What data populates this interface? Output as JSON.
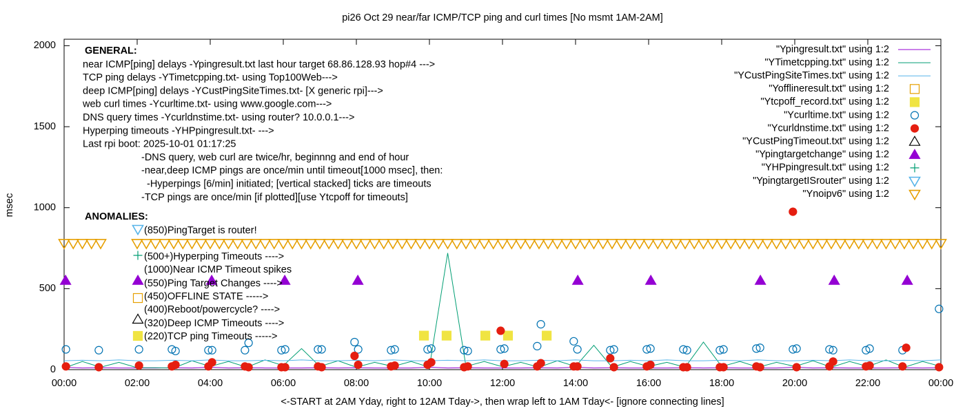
{
  "chart_data": {
    "type": "scatter",
    "title": "pi26 Oct 29  near/far ICMP/TCP ping and curl times [No msmt 1AM-2AM]",
    "x_label": "<-START at 2AM Yday, right to 12AM Tday->, then wrap left to 1AM Tday<- [ignore connecting lines]",
    "y_label": "msec",
    "xlim": [
      0,
      24
    ],
    "ylim": [
      0,
      2040
    ],
    "xticks": [
      {
        "value": 0,
        "label": "00:00"
      },
      {
        "value": 2,
        "label": "02:00"
      },
      {
        "value": 4,
        "label": "04:00"
      },
      {
        "value": 6,
        "label": "06:00"
      },
      {
        "value": 8,
        "label": "08:00"
      },
      {
        "value": 10,
        "label": "10:00"
      },
      {
        "value": 12,
        "label": "12:00"
      },
      {
        "value": 14,
        "label": "14:00"
      },
      {
        "value": 16,
        "label": "16:00"
      },
      {
        "value": 18,
        "label": "18:00"
      },
      {
        "value": 20,
        "label": "20:00"
      },
      {
        "value": 22,
        "label": "22:00"
      },
      {
        "value": 24,
        "label": "00:00"
      }
    ],
    "yticks": [
      0,
      500,
      1000,
      1500,
      2000
    ],
    "legend": "top-right",
    "annotations": {
      "general_heading": "GENERAL:",
      "general": [
        "near ICMP[ping] delays -Ypingresult.txt last hour target 68.86.128.93 hop#4 --->",
        "TCP ping delays -YTimetcpping.txt- using Top100Web--->",
        "deep ICMP[ping] delays -YCustPingSiteTimes.txt- [X generic rpi]--->",
        "web curl times -Ycurltime.txt- using www.google.com--->",
        "DNS query times -Ycurldnstime.txt- using router? 10.0.0.1--->",
        "Hyperping timeouts -YHPpingresult.txt- --->",
        "Last rpi boot: 2025-10-01 01:17:25",
        "-DNS query, web curl are twice/hr, beginnng and end of hour",
        "-near,deep ICMP pings are once/min until timeout[1000 msec], then:",
        "-Hyperpings [6/min] initiated; [vertical stacked] ticks are timeouts",
        "-TCP pings are once/min [if plotted][use Ytcpoff for timeouts]"
      ],
      "anomalies_heading": "ANOMALIES:",
      "anomalies": [
        "(850)PingTarget is router!",
        "(500+)Hyperping Timeouts ---->",
        "(1000)Near ICMP Timeout spikes",
        "(550)Ping Target Changes ---->",
        "(450)OFFLINE STATE ----->",
        "(400)Reboot/powercycle? ---->",
        "(320)Deep ICMP Timeouts ---->",
        "(220)TCP ping Timeouts ----->"
      ]
    },
    "series": [
      {
        "name": "\"Ypingresult.txt\" using 1:2",
        "color": "#9400d3",
        "marker": "line",
        "x": [
          0,
          0.5,
          1,
          1.5,
          2,
          2.5,
          3,
          3.5,
          4,
          4.5,
          5,
          5.5,
          6,
          6.5,
          7,
          7.5,
          8,
          8.5,
          9,
          9.5,
          10,
          10.5,
          11,
          11.5,
          12,
          12.5,
          13,
          13.5,
          14,
          14.5,
          15,
          15.5,
          16,
          16.5,
          17,
          17.5,
          18,
          18.5,
          19,
          19.5,
          20,
          20.5,
          21,
          21.5,
          22,
          22.5,
          23,
          23.5,
          24
        ],
        "values": [
          15,
          10,
          12,
          10,
          10,
          10,
          12,
          10,
          15,
          10,
          12,
          10,
          10,
          10,
          12,
          10,
          12,
          10,
          10,
          10,
          15,
          10,
          12,
          10,
          10,
          10,
          12,
          10,
          15,
          10,
          12,
          10,
          10,
          10,
          12,
          10,
          12,
          10,
          10,
          10,
          15,
          10,
          12,
          10,
          10,
          10,
          12,
          10,
          12
        ]
      },
      {
        "name": "\"YTimetcpping.txt\" using 1:2",
        "color": "#009e73",
        "marker": "line",
        "x": [
          0,
          0.5,
          1,
          1.5,
          2,
          2.5,
          3,
          3.5,
          4,
          4.5,
          5,
          5.5,
          6,
          6.5,
          7,
          7.5,
          8,
          8.5,
          9,
          9.5,
          10,
          10.5,
          11,
          11.5,
          12,
          12.5,
          13,
          13.5,
          14,
          14.5,
          15,
          15.5,
          16,
          16.5,
          17,
          17.5,
          18,
          18.5,
          19,
          19.5,
          20,
          20.5,
          21,
          21.5,
          22,
          22.5,
          23,
          23.5,
          24
        ],
        "values": [
          10,
          50,
          15,
          45,
          12,
          12,
          10,
          55,
          20,
          50,
          15,
          60,
          25,
          130,
          20,
          55,
          15,
          45,
          20,
          50,
          15,
          720,
          20,
          50,
          18,
          45,
          15,
          55,
          20,
          150,
          15,
          50,
          20,
          45,
          15,
          170,
          20,
          50,
          15,
          45,
          20,
          55,
          15,
          50,
          20,
          60,
          15,
          50,
          20
        ]
      },
      {
        "name": "\"YCustPingSiteTimes.txt\" using 1:2",
        "color": "#56b4e9",
        "marker": "line",
        "x": [
          0,
          0.5,
          1,
          1.5,
          2,
          2.5,
          3,
          3.5,
          4,
          4.5,
          5,
          5.5,
          6,
          6.5,
          7,
          7.5,
          8,
          8.5,
          9,
          9.5,
          10,
          10.5,
          11,
          11.5,
          12,
          12.5,
          13,
          13.5,
          14,
          14.5,
          15,
          15.5,
          16,
          16.5,
          17,
          17.5,
          18,
          18.5,
          19,
          19.5,
          20,
          20.5,
          21,
          21.5,
          22,
          22.5,
          23,
          23.5,
          24
        ],
        "values": [
          55,
          58,
          55,
          60,
          55,
          55,
          58,
          55,
          60,
          55,
          55,
          58,
          55,
          60,
          55,
          55,
          58,
          55,
          60,
          55,
          55,
          58,
          55,
          60,
          55,
          55,
          58,
          55,
          60,
          55,
          55,
          58,
          55,
          60,
          55,
          55,
          58,
          55,
          60,
          55,
          55,
          58,
          55,
          60,
          55,
          55,
          58,
          55,
          60
        ]
      },
      {
        "name": "\"Yofflineresult.txt\" using 1:2",
        "color": "#e69f00",
        "marker": "square-open",
        "x": [],
        "values": []
      },
      {
        "name": "\"Ytcpoff_record.txt\" using 1:2",
        "color": "#f0e442",
        "marker": "square",
        "x": [
          9.85,
          10.47,
          11.53,
          12.15,
          13.21
        ],
        "values": [
          210,
          210,
          210,
          210,
          210
        ]
      },
      {
        "name": "\"Ycurltime.txt\" using 1:2",
        "color": "#0072b2",
        "marker": "circle-open",
        "x": [
          0.05,
          0.95,
          2.05,
          2.95,
          3.05,
          3.95,
          4.05,
          4.95,
          5.05,
          5.95,
          6.05,
          6.95,
          7.05,
          7.95,
          8.05,
          8.95,
          9.05,
          9.95,
          10.05,
          10.95,
          11.05,
          11.95,
          12.05,
          12.95,
          13.05,
          13.95,
          14.05,
          14.95,
          15.05,
          15.95,
          16.05,
          16.95,
          17.05,
          17.95,
          18.05,
          18.95,
          19.05,
          19.95,
          20.05,
          20.95,
          21.05,
          21.95,
          22.05,
          22.95,
          23.95
        ],
        "values": [
          125,
          120,
          125,
          125,
          115,
          120,
          120,
          120,
          165,
          120,
          125,
          125,
          125,
          170,
          125,
          120,
          125,
          125,
          130,
          120,
          115,
          125,
          130,
          145,
          280,
          175,
          125,
          120,
          125,
          125,
          130,
          125,
          120,
          120,
          125,
          130,
          135,
          125,
          130,
          125,
          120,
          120,
          130,
          120,
          375
        ]
      },
      {
        "name": "\"Ycurldnstime.txt\" using 1:2",
        "color": "#e51e10",
        "marker": "circle",
        "x": [
          0.05,
          0.95,
          2.05,
          2.95,
          3.05,
          3.95,
          4.05,
          4.95,
          5.05,
          5.95,
          6.05,
          6.95,
          7.05,
          7.95,
          8.05,
          8.95,
          9.05,
          9.95,
          10.05,
          10.95,
          11.05,
          11.95,
          12.05,
          12.95,
          13.05,
          13.95,
          14.05,
          14.95,
          15.05,
          15.95,
          16.05,
          16.95,
          17.05,
          17.95,
          18.05,
          18.95,
          19.05,
          19.95,
          20.05,
          20.95,
          21.05,
          21.95,
          22.05,
          22.95,
          23.05,
          23.95
        ],
        "values": [
          20,
          15,
          25,
          20,
          30,
          20,
          45,
          20,
          15,
          15,
          15,
          20,
          15,
          85,
          30,
          20,
          25,
          30,
          45,
          15,
          20,
          240,
          35,
          20,
          40,
          20,
          20,
          70,
          15,
          20,
          30,
          15,
          15,
          15,
          15,
          20,
          15,
          975,
          15,
          20,
          50,
          20,
          25,
          20,
          135,
          15
        ]
      },
      {
        "name": "\"YCustPingTimeout.txt\" using 1:2",
        "color": "#000000",
        "marker": "triangle-open",
        "x": [],
        "values": []
      },
      {
        "name": "\"Ypingtargetchange\" using 1:2",
        "color": "#9400d3",
        "marker": "triangle",
        "x": [
          0.04,
          2.02,
          4.04,
          6.04,
          8.04,
          14.06,
          16.06,
          19.06,
          21.08,
          23.08
        ],
        "values": [
          550,
          550,
          550,
          550,
          550,
          550,
          550,
          550,
          550,
          550
        ]
      },
      {
        "name": "\"YHPpingresult.txt\" using 1:2",
        "color": "#009e73",
        "marker": "plus",
        "x": [],
        "values": []
      },
      {
        "name": "\"YpingtargetISrouter\" using 1:2",
        "color": "#56b4e9",
        "marker": "triangle-down-open",
        "x": [],
        "values": []
      },
      {
        "name": "\"Ynoipv6\" using 1:2",
        "color": "#e69f00",
        "marker": "triangle-down-open",
        "x": [
          0,
          0.25,
          0.5,
          0.75,
          1,
          2,
          2.25,
          2.5,
          2.75,
          3,
          3.25,
          3.5,
          3.75,
          4,
          4.25,
          4.5,
          4.75,
          5,
          5.25,
          5.5,
          5.75,
          6,
          6.25,
          6.5,
          6.75,
          7,
          7.25,
          7.5,
          7.75,
          8,
          8.25,
          8.5,
          8.75,
          9,
          9.25,
          9.5,
          9.75,
          10,
          10.25,
          10.5,
          10.75,
          11,
          11.25,
          11.5,
          11.75,
          12,
          12.25,
          12.5,
          12.75,
          13,
          13.25,
          13.5,
          13.75,
          14,
          14.25,
          14.5,
          14.75,
          15,
          15.25,
          15.5,
          15.75,
          16,
          16.25,
          16.5,
          16.75,
          17,
          17.25,
          17.5,
          17.75,
          18,
          18.25,
          18.5,
          18.75,
          19,
          19.25,
          19.5,
          19.75,
          20,
          20.25,
          20.5,
          20.75,
          21,
          21.25,
          21.5,
          21.75,
          22,
          22.25,
          22.5,
          22.75,
          23,
          23.25,
          23.5,
          23.75,
          24
        ],
        "values": [
          780,
          780,
          780,
          780,
          780,
          780,
          780,
          780,
          780,
          780,
          780,
          780,
          780,
          780,
          780,
          780,
          780,
          780,
          780,
          780,
          780,
          780,
          780,
          780,
          780,
          780,
          780,
          780,
          780,
          780,
          780,
          780,
          780,
          780,
          780,
          780,
          780,
          780,
          780,
          780,
          780,
          780,
          780,
          780,
          780,
          780,
          780,
          780,
          780,
          780,
          780,
          780,
          780,
          780,
          780,
          780,
          780,
          780,
          780,
          780,
          780,
          780,
          780,
          780,
          780,
          780,
          780,
          780,
          780,
          780,
          780,
          780,
          780,
          780,
          780,
          780,
          780,
          780,
          780,
          780,
          780,
          780,
          780,
          780,
          780,
          780,
          780,
          780,
          780,
          780,
          780,
          780,
          780,
          780
        ]
      }
    ]
  }
}
